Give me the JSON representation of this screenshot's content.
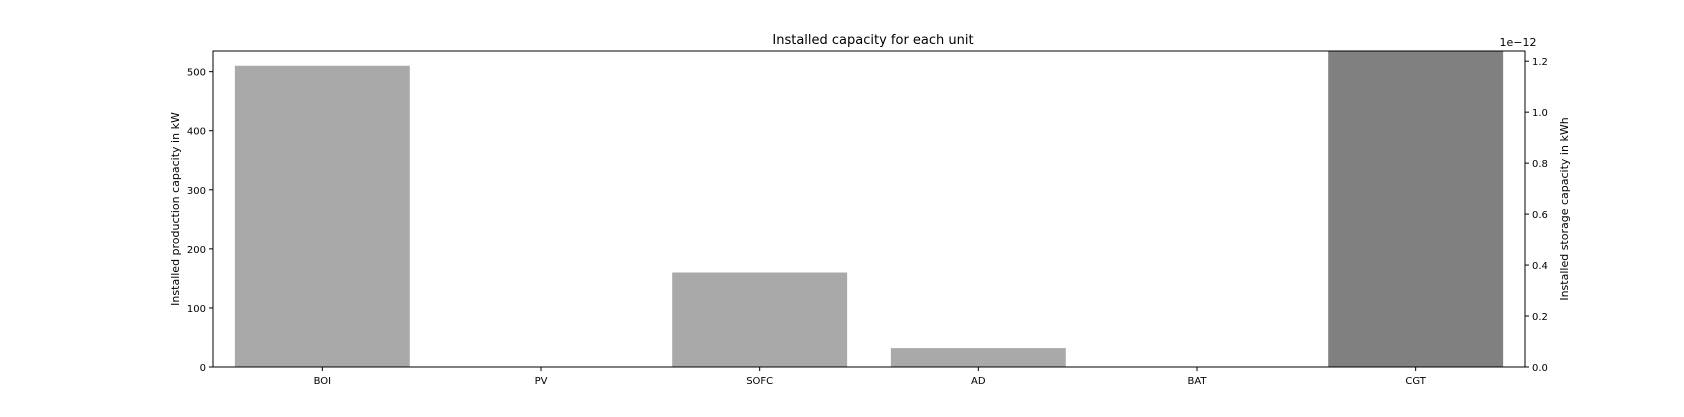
{
  "chart_data": {
    "type": "bar",
    "title": "Installed capacity for each unit",
    "categories": [
      "BOI",
      "PV",
      "SOFC",
      "AD",
      "BAT",
      "CGT"
    ],
    "production": {
      "ylabel": "Installed production capacity in kW",
      "ylim": [
        0,
        535
      ],
      "yticks": [
        0,
        100,
        200,
        300,
        400,
        500
      ],
      "values": [
        510,
        0,
        160,
        32,
        0,
        0
      ]
    },
    "storage": {
      "ylabel": "Installed storage capacity in kWh",
      "multiplier": "1e−12",
      "ylim": [
        0,
        1.24
      ],
      "yticks": [
        0.0,
        0.2,
        0.4,
        0.6,
        0.8,
        1.0,
        1.2
      ],
      "tick_labels": [
        "0.0",
        "0.2",
        "0.4",
        "0.6",
        "0.8",
        "1.0",
        "1.2"
      ],
      "values": [
        0,
        0,
        0,
        0,
        0,
        1.24
      ]
    },
    "colors": {
      "production_bar": "#a9a9a9",
      "storage_bar": "#808080",
      "axis": "#000000"
    },
    "grid": false,
    "legend": "none"
  }
}
